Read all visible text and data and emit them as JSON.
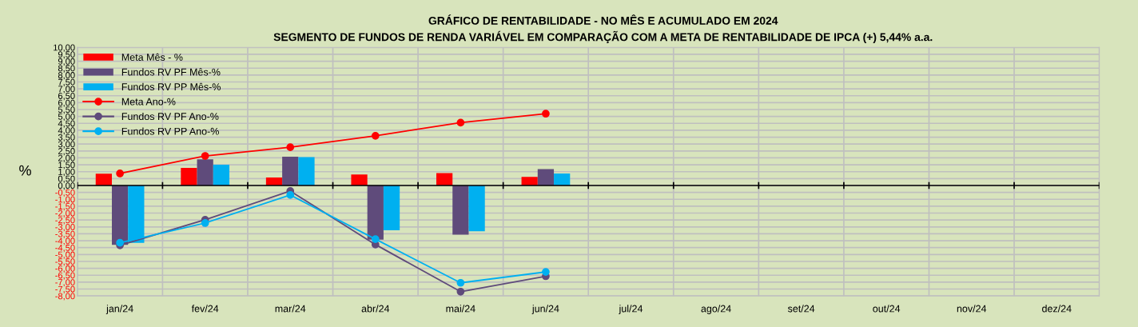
{
  "chart_data": {
    "type": "bar",
    "title": "GRÁFICO DE RENTABILIDADE - NO MÊS E ACUMULADO EM 2024",
    "subtitle": "SEGMENTO DE FUNDOS DE RENDA VARIÁVEL EM COMPARAÇÃO COM A META DE RENTABILIDADE DE IPCA (+) 5,44% a.a.",
    "ylabel": "%",
    "categories": [
      "jan/24",
      "fev/24",
      "mar/24",
      "abr/24",
      "mai/24",
      "jun/24",
      "jul/24",
      "ago/24",
      "set/24",
      "out/24",
      "nov/24",
      "dez/24"
    ],
    "series": [
      {
        "name": "Meta Mês - %",
        "color": "#ff0000",
        "values": [
          0.85,
          1.27,
          0.58,
          0.79,
          0.89,
          0.62,
          null,
          null,
          null,
          null,
          null,
          null
        ]
      },
      {
        "name": "Fundos RV PF Mês-%",
        "color": "#5f4b7b",
        "values": [
          -4.3,
          1.9,
          2.08,
          -3.93,
          -3.56,
          1.19,
          null,
          null,
          null,
          null,
          null,
          null
        ]
      },
      {
        "name": "Fundos RV PP Mês-%",
        "color": "#00b0f0",
        "values": [
          -4.15,
          1.5,
          2.05,
          -3.24,
          -3.31,
          0.87,
          null,
          null,
          null,
          null,
          null,
          null
        ]
      },
      {
        "name": "Meta Ano-%",
        "type": "line",
        "color": "#ff0000",
        "values": [
          0.87,
          2.14,
          2.77,
          3.6,
          4.55,
          5.2,
          null,
          null,
          null,
          null,
          null,
          null
        ]
      },
      {
        "name": "Fundos RV PF Ano-%",
        "type": "line",
        "color": "#5f4b7b",
        "values": [
          -4.33,
          -2.48,
          -0.4,
          -4.28,
          -7.69,
          -6.57,
          null,
          null,
          null,
          null,
          null,
          null
        ]
      },
      {
        "name": "Fundos RV PP Ano-%",
        "type": "line",
        "color": "#00b0f0",
        "values": [
          -4.15,
          -2.72,
          -0.69,
          -3.89,
          -7.05,
          -6.26,
          null,
          null,
          null,
          null,
          null,
          null
        ]
      }
    ],
    "ylim": [
      -8,
      10
    ],
    "yticks": [
      {
        "value": -8,
        "label": "-8,00"
      },
      {
        "value": -7.5,
        "label": "-7,50"
      },
      {
        "value": -7,
        "label": "-7,00"
      },
      {
        "value": -6.5,
        "label": "-6,50"
      },
      {
        "value": -6,
        "label": "-6,00"
      },
      {
        "value": -5.5,
        "label": "-5,50"
      },
      {
        "value": -5,
        "label": "-5,00"
      },
      {
        "value": -4.5,
        "label": "-4,50"
      },
      {
        "value": -4,
        "label": "-4,00"
      },
      {
        "value": -3.5,
        "label": "-3,50"
      },
      {
        "value": -3,
        "label": "-3,00"
      },
      {
        "value": -2.5,
        "label": "-2,50"
      },
      {
        "value": -2,
        "label": "-2,00"
      },
      {
        "value": -1.5,
        "label": "-1,50"
      },
      {
        "value": -1,
        "label": "-1,00"
      },
      {
        "value": -0.5,
        "label": "-0,50"
      },
      {
        "value": 0,
        "label": "0,00"
      },
      {
        "value": 0.5,
        "label": "0,50"
      },
      {
        "value": 1,
        "label": "1,00"
      },
      {
        "value": 1.5,
        "label": "1,50"
      },
      {
        "value": 2,
        "label": "2,00"
      },
      {
        "value": 2.5,
        "label": "2,50"
      },
      {
        "value": 3,
        "label": "3,00"
      },
      {
        "value": 3.5,
        "label": "3,50"
      },
      {
        "value": 4,
        "label": "4,00"
      },
      {
        "value": 4.5,
        "label": "4,50"
      },
      {
        "value": 5,
        "label": "5,00"
      },
      {
        "value": 5.5,
        "label": "5,50"
      },
      {
        "value": 6,
        "label": "6,00"
      },
      {
        "value": 6.5,
        "label": "6,50"
      },
      {
        "value": 7,
        "label": "7,00"
      },
      {
        "value": 7.5,
        "label": "7,50"
      },
      {
        "value": 8,
        "label": "8,00"
      },
      {
        "value": 8.5,
        "label": "8,50"
      },
      {
        "value": 9,
        "label": "9,00"
      },
      {
        "value": 9.5,
        "label": "9,50"
      },
      {
        "value": 10,
        "label": "10,00"
      }
    ],
    "grid": true,
    "legend": "top left",
    "marker": "circle",
    "line_style": "solid"
  }
}
